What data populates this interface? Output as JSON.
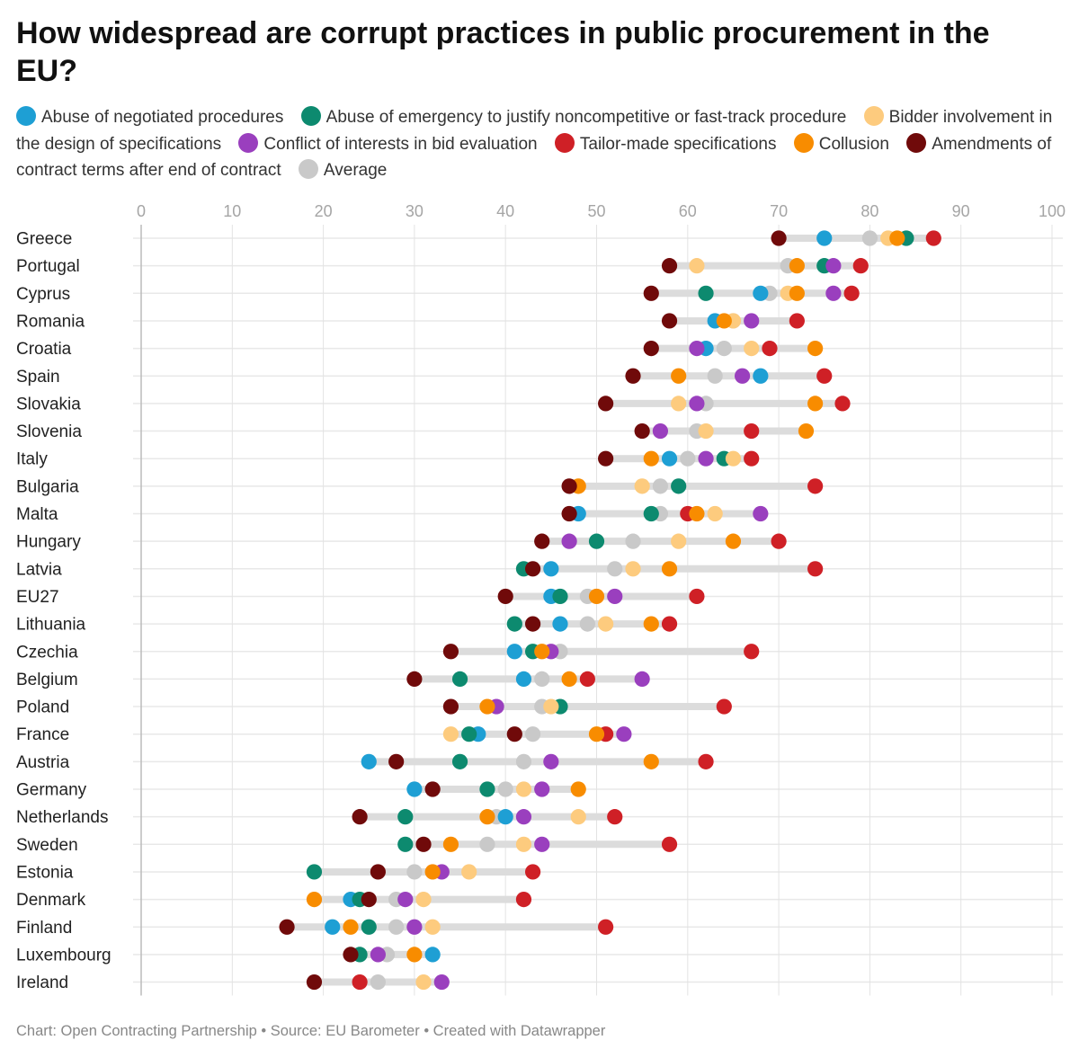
{
  "title": "How widespread are corrupt practices in public procurement in the EU?",
  "footer": "Chart: Open Contracting Partnership • Source: EU Barometer • Created with Datawrapper",
  "chart_data": {
    "type": "scatter",
    "subtype": "dot-range",
    "xlim": [
      0,
      100
    ],
    "x_ticks": [
      0,
      10,
      20,
      30,
      40,
      50,
      60,
      70,
      80,
      90,
      100
    ],
    "grid": true,
    "legend_position": "top",
    "categories": [
      "Greece",
      "Portugal",
      "Cyprus",
      "Romania",
      "Croatia",
      "Spain",
      "Slovakia",
      "Slovenia",
      "Italy",
      "Bulgaria",
      "Malta",
      "Hungary",
      "Latvia",
      "EU27",
      "Lithuania",
      "Czechia",
      "Belgium",
      "Poland",
      "France",
      "Austria",
      "Germany",
      "Netherlands",
      "Sweden",
      "Estonia",
      "Denmark",
      "Finland",
      "Luxembourg",
      "Ireland"
    ],
    "series": [
      {
        "name": "Abuse of negotiated procedures",
        "color": "#1e9fd4",
        "values": [
          75,
          null,
          68,
          63,
          62,
          68,
          null,
          null,
          58,
          null,
          48,
          null,
          45,
          45,
          46,
          41,
          42,
          null,
          37,
          25,
          30,
          40,
          null,
          null,
          23,
          21,
          32,
          null
        ]
      },
      {
        "name": "Abuse of emergency to justify noncompetitive or fast-track procedure",
        "color": "#0d8a6f",
        "values": [
          84,
          75,
          62,
          null,
          null,
          null,
          null,
          null,
          64,
          59,
          56,
          50,
          42,
          46,
          41,
          43,
          35,
          46,
          36,
          35,
          38,
          29,
          29,
          19,
          24,
          25,
          24,
          null
        ]
      },
      {
        "name": "Bidder involvement in the design of specifications",
        "color": "#fdcb7e",
        "values": [
          82,
          61,
          71,
          65,
          67,
          null,
          59,
          62,
          65,
          55,
          63,
          59,
          54,
          null,
          51,
          null,
          null,
          45,
          34,
          null,
          42,
          48,
          42,
          36,
          31,
          32,
          null,
          31
        ]
      },
      {
        "name": "Conflict of interests in bid evaluation",
        "color": "#9a3fbe",
        "values": [
          null,
          76,
          76,
          67,
          61,
          66,
          61,
          57,
          62,
          null,
          68,
          47,
          null,
          52,
          null,
          45,
          55,
          39,
          53,
          45,
          44,
          42,
          44,
          33,
          29,
          30,
          26,
          33
        ]
      },
      {
        "name": "Tailor-made specifications",
        "color": "#cf2026",
        "values": [
          87,
          79,
          78,
          72,
          69,
          75,
          77,
          67,
          67,
          74,
          60,
          70,
          74,
          61,
          58,
          67,
          49,
          64,
          51,
          62,
          null,
          52,
          58,
          43,
          42,
          51,
          null,
          24
        ]
      },
      {
        "name": "Collusion",
        "color": "#f88c00",
        "values": [
          83,
          72,
          72,
          64,
          74,
          59,
          74,
          73,
          56,
          48,
          61,
          65,
          58,
          50,
          56,
          44,
          47,
          38,
          50,
          56,
          48,
          38,
          34,
          32,
          19,
          23,
          30,
          null
        ]
      },
      {
        "name": "Amendments of contract terms after end of contract",
        "color": "#700a0a",
        "values": [
          70,
          58,
          56,
          58,
          56,
          54,
          51,
          55,
          51,
          47,
          47,
          44,
          43,
          40,
          43,
          34,
          30,
          34,
          41,
          28,
          32,
          24,
          31,
          26,
          25,
          16,
          23,
          19
        ]
      },
      {
        "name": "Average",
        "color": "#c9c9c9",
        "values": [
          80,
          71,
          69,
          65,
          64,
          63,
          62,
          61,
          60,
          57,
          57,
          54,
          52,
          49,
          49,
          46,
          44,
          44,
          43,
          42,
          40,
          39,
          38,
          30,
          28,
          28,
          27,
          26
        ]
      }
    ]
  }
}
